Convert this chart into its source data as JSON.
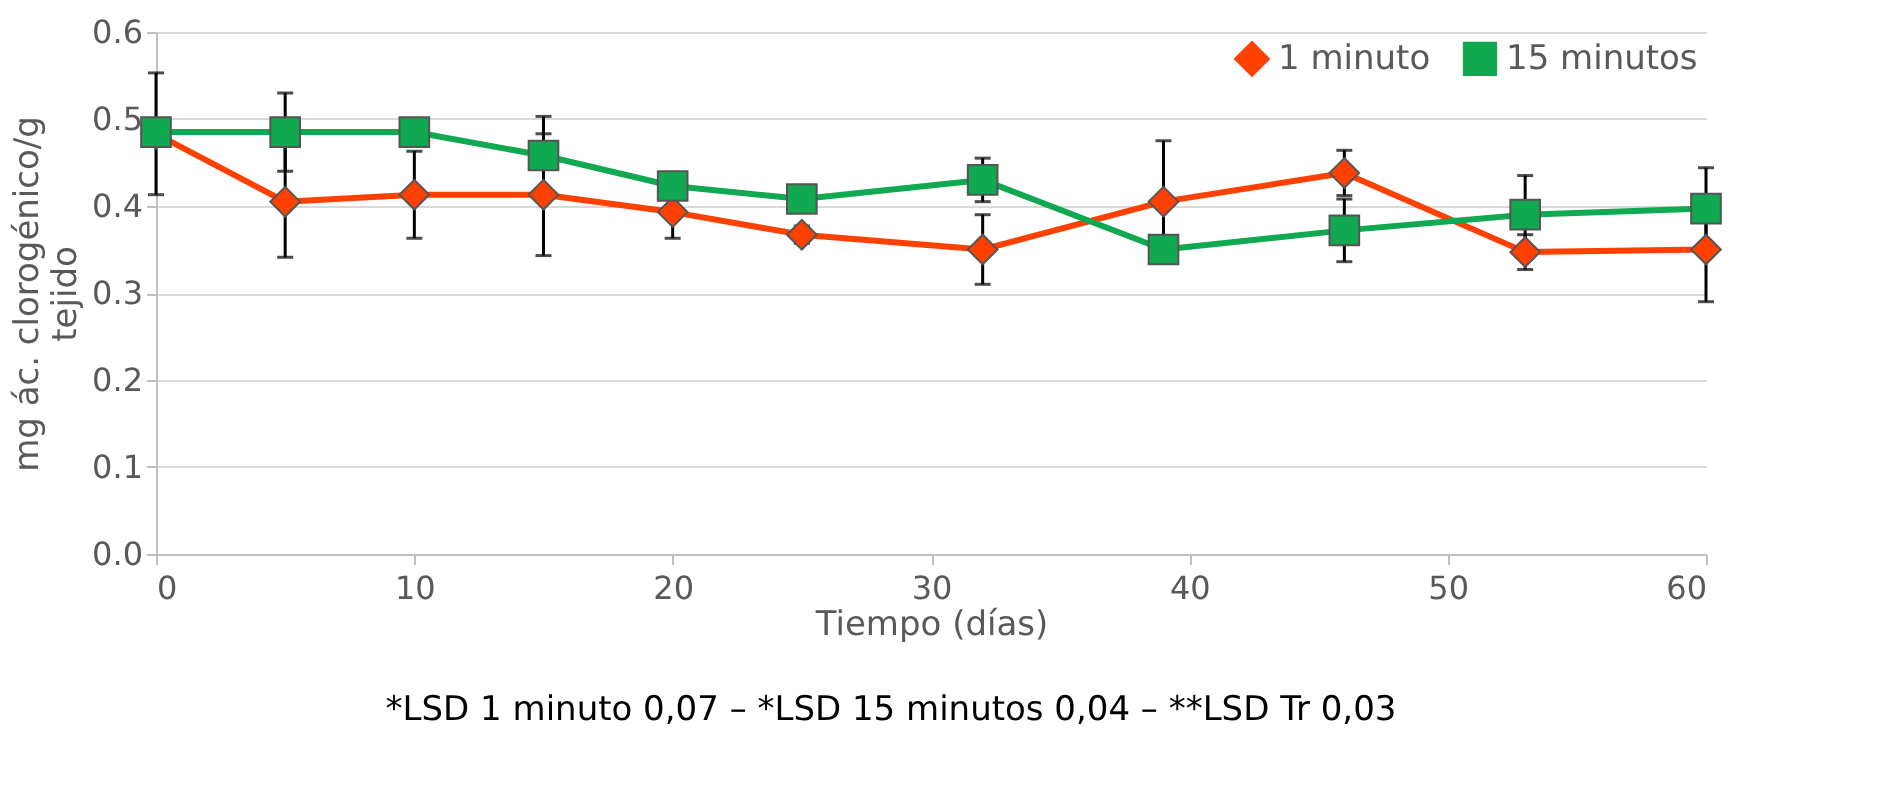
{
  "chart_data": {
    "type": "line",
    "xlabel": "Tiempo (días)",
    "ylabel": "mg ác. clorogénico/g tejido",
    "x": [
      0,
      5,
      10,
      15,
      20,
      25,
      32,
      39,
      46,
      53,
      60
    ],
    "series": [
      {
        "name": "1 minuto",
        "color": "#ff4000",
        "marker": "diamond",
        "values": [
          0.483,
          0.405,
          0.413,
          0.413,
          0.393,
          0.367,
          0.35,
          0.405,
          0.438,
          0.347,
          0.35
        ],
        "errors": [
          0.07,
          0.064,
          0.05,
          0.07,
          0.03,
          0.01,
          0.04,
          0.07,
          0.026,
          0.02,
          0.06
        ]
      },
      {
        "name": "15 minutos",
        "color": "#10a850",
        "marker": "square",
        "values": [
          0.485,
          0.485,
          0.485,
          0.458,
          0.423,
          0.408,
          0.43,
          0.35,
          0.372,
          0.39,
          0.397
        ],
        "errors": [
          null,
          0.045,
          null,
          0.045,
          null,
          null,
          0.025,
          null,
          0.036,
          0.045,
          0.047
        ]
      }
    ],
    "xlim": [
      0,
      60
    ],
    "xticks": [
      0,
      10,
      20,
      30,
      40,
      50,
      60
    ],
    "ylim": [
      0,
      0.6
    ],
    "yticks": [
      {
        "value": 0,
        "label": "0.0"
      },
      0.1,
      0.2,
      0.3,
      0.4,
      0.5,
      0.6
    ],
    "grid": "y",
    "legend": "top right",
    "line_style": "solid",
    "annotations": [
      "*LSD 1 minuto  0,07 – *LSD 15 minutos 0,04 – **LSD Tr 0,03"
    ]
  }
}
